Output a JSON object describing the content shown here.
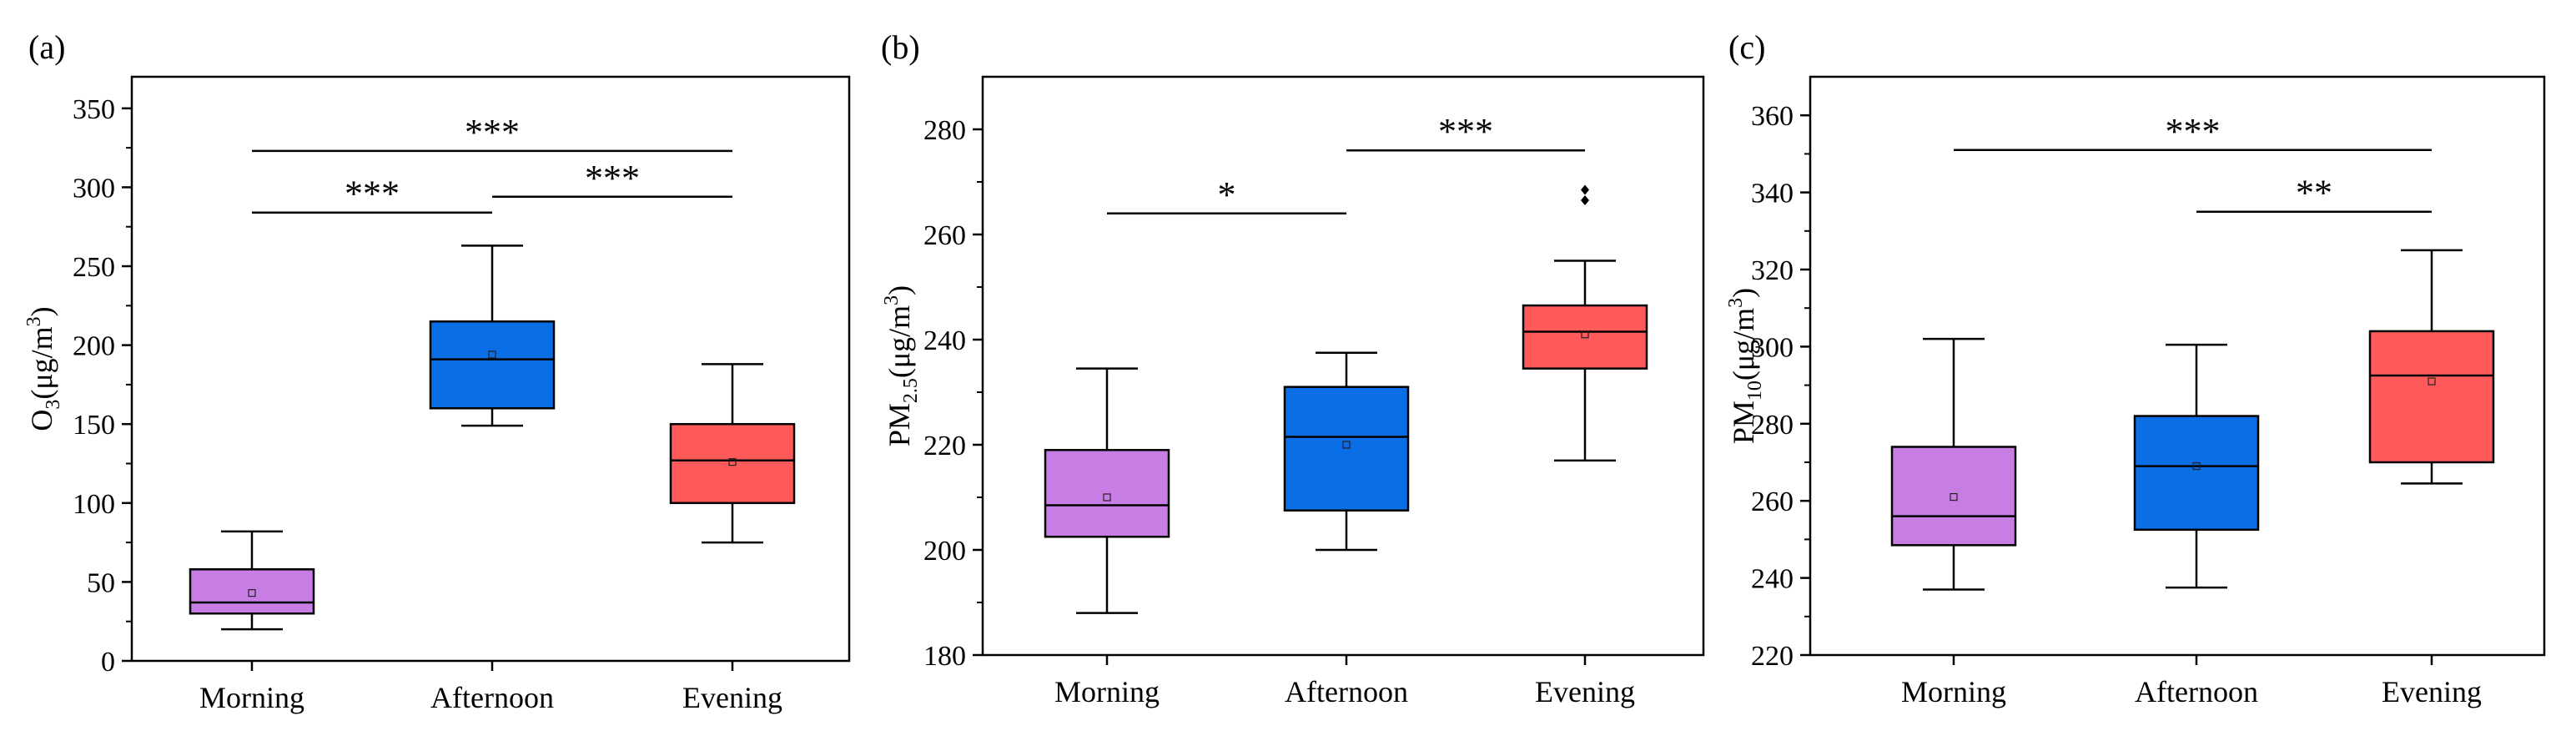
{
  "chart_data": [
    {
      "type": "box",
      "panel_label": "(a)",
      "ylabel": "O3(μg/m3)",
      "ylabel_parts": {
        "base": "O",
        "sub": "3",
        "unit_open": "(μg/m",
        "sup": "3",
        "unit_close": ")"
      },
      "ylim": [
        0,
        370
      ],
      "yticks": [
        0,
        50,
        100,
        150,
        200,
        250,
        300,
        350
      ],
      "categories": [
        "Morning",
        "Afternoon",
        "Evening"
      ],
      "colors": [
        "#c77de3",
        "#0a6ee6",
        "#ff5a5a"
      ],
      "boxes": [
        {
          "category": "Morning",
          "whisker_low": 20,
          "q1": 30,
          "median": 37,
          "q3": 58,
          "whisker_high": 82,
          "mean": 43,
          "outliers": []
        },
        {
          "category": "Afternoon",
          "whisker_low": 149,
          "q1": 160,
          "median": 191,
          "q3": 215,
          "whisker_high": 263,
          "mean": 194,
          "outliers": []
        },
        {
          "category": "Evening",
          "whisker_low": 75,
          "q1": 100,
          "median": 127,
          "q3": 150,
          "whisker_high": 188,
          "mean": 126,
          "outliers": []
        }
      ],
      "significance": [
        {
          "from": "Morning",
          "to": "Evening",
          "y": 323,
          "label": "***"
        },
        {
          "from": "Morning",
          "to": "Afternoon",
          "y": 284,
          "label": "***"
        },
        {
          "from": "Afternoon",
          "to": "Evening",
          "y": 294,
          "label": "***"
        }
      ]
    },
    {
      "type": "box",
      "panel_label": "(b)",
      "ylabel": "PM2.5(μg/m3)",
      "ylabel_parts": {
        "base": "PM",
        "sub": "2.5",
        "unit_open": "(μg/m",
        "sup": "3",
        "unit_close": ")"
      },
      "ylim": [
        180,
        290
      ],
      "yticks": [
        180,
        200,
        220,
        240,
        260,
        280
      ],
      "categories": [
        "Morning",
        "Afternoon",
        "Evening"
      ],
      "colors": [
        "#c77de3",
        "#0a6ee6",
        "#ff5a5a"
      ],
      "boxes": [
        {
          "category": "Morning",
          "whisker_low": 188,
          "q1": 202.5,
          "median": 208.5,
          "q3": 219,
          "whisker_high": 234.5,
          "mean": 210,
          "outliers": []
        },
        {
          "category": "Afternoon",
          "whisker_low": 200,
          "q1": 207.5,
          "median": 221.5,
          "q3": 231,
          "whisker_high": 237.5,
          "mean": 220,
          "outliers": []
        },
        {
          "category": "Evening",
          "whisker_low": 217,
          "q1": 234.5,
          "median": 241.5,
          "q3": 246.5,
          "whisker_high": 255,
          "mean": 241,
          "outliers": [
            266.5,
            268.5
          ]
        }
      ],
      "significance": [
        {
          "from": "Morning",
          "to": "Afternoon",
          "y": 264,
          "label": "*"
        },
        {
          "from": "Afternoon",
          "to": "Evening",
          "y": 276,
          "label": "***"
        }
      ]
    },
    {
      "type": "box",
      "panel_label": "(c)",
      "ylabel": "PM10(μg/m3)",
      "ylabel_parts": {
        "base": "PM",
        "sub": "10",
        "unit_open": "(μg/m",
        "sup": "3",
        "unit_close": ")"
      },
      "ylim": [
        220,
        370
      ],
      "yticks": [
        220,
        240,
        260,
        280,
        300,
        320,
        340,
        360
      ],
      "categories": [
        "Morning",
        "Afternoon",
        "Evening"
      ],
      "colors": [
        "#c77de3",
        "#0a6ee6",
        "#ff5a5a"
      ],
      "boxes": [
        {
          "category": "Morning",
          "whisker_low": 237,
          "q1": 248.5,
          "median": 256,
          "q3": 274,
          "whisker_high": 302,
          "mean": 261,
          "outliers": []
        },
        {
          "category": "Afternoon",
          "whisker_low": 237.5,
          "q1": 252.5,
          "median": 269,
          "q3": 282,
          "whisker_high": 300.5,
          "mean": 269,
          "outliers": []
        },
        {
          "category": "Evening",
          "whisker_low": 264.5,
          "q1": 270,
          "median": 292.5,
          "q3": 304,
          "whisker_high": 325,
          "mean": 291,
          "outliers": []
        }
      ],
      "significance": [
        {
          "from": "Morning",
          "to": "Evening",
          "y": 351,
          "label": "***"
        },
        {
          "from": "Afternoon",
          "to": "Evening",
          "y": 335,
          "label": "**"
        }
      ]
    }
  ]
}
